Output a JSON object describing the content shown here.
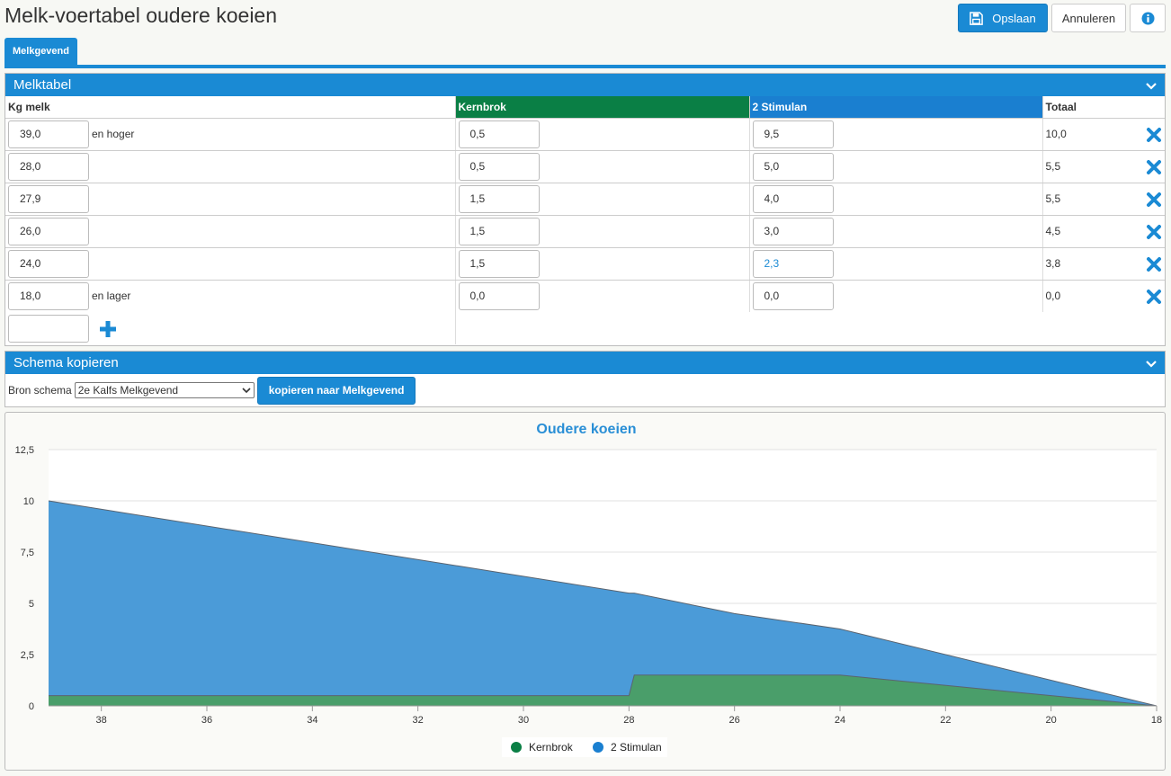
{
  "title": "Melk-voertabel oudere koeien",
  "toolbar": {
    "save_label": "Opslaan",
    "cancel_label": "Annuleren"
  },
  "tabs": [
    {
      "label": "Melkgevend",
      "active": true
    }
  ],
  "melktabel": {
    "header": "Melktabel",
    "columns": {
      "kg": "Kg melk",
      "kernbrok": "Kernbrok",
      "stimulan": "2 Stimulan",
      "totaal": "Totaal"
    },
    "rows": [
      {
        "kg": "39,0",
        "suffix": "en hoger",
        "kernbrok": "0,5",
        "stimulan": "9,5",
        "totaal": "10,0"
      },
      {
        "kg": "28,0",
        "suffix": "",
        "kernbrok": "0,5",
        "stimulan": "5,0",
        "totaal": "5,5"
      },
      {
        "kg": "27,9",
        "suffix": "",
        "kernbrok": "1,5",
        "stimulan": "4,0",
        "totaal": "5,5"
      },
      {
        "kg": "26,0",
        "suffix": "",
        "kernbrok": "1,5",
        "stimulan": "3,0",
        "totaal": "4,5"
      },
      {
        "kg": "24,0",
        "suffix": "",
        "kernbrok": "1,5",
        "stimulan": "2,3",
        "totaal": "3,8"
      },
      {
        "kg": "18,0",
        "suffix": "en lager",
        "kernbrok": "0,0",
        "stimulan": "0,0",
        "totaal": "0,0"
      }
    ],
    "new_row_value": ""
  },
  "schema": {
    "header": "Schema kopieren",
    "source_label": "Bron schema",
    "source_value": "2e Kalfs Melkgevend",
    "copy_button": "kopieren naar Melkgevend"
  },
  "colors": {
    "accent": "#1a8ad4",
    "kernbrok": "#0a7f45",
    "stimulan": "#1a7fd0",
    "kernbrok_area": "#4a9e6a",
    "stimulan_area": "#4b9bd8"
  },
  "chart_data": {
    "type": "area",
    "stacked": true,
    "title": "Oudere koeien",
    "x": [
      39,
      28,
      27.9,
      26,
      24,
      18
    ],
    "series": [
      {
        "name": "Kernbrok",
        "values": [
          0.5,
          0.5,
          1.5,
          1.5,
          1.5,
          0.0
        ]
      },
      {
        "name": "2 Stimulan",
        "values": [
          9.5,
          5.0,
          4.0,
          3.0,
          2.25,
          0.0
        ]
      }
    ],
    "xlim": [
      39,
      18
    ],
    "ylim": [
      0,
      12.5
    ],
    "x_ticks": [
      "38",
      "36",
      "34",
      "32",
      "30",
      "28",
      "26",
      "24",
      "22",
      "20",
      "18"
    ],
    "y_ticks": [
      "0",
      "2,5",
      "5",
      "7,5",
      "10",
      "12,5"
    ],
    "x_reversed": true,
    "grid": true,
    "legend": "bottom-center"
  }
}
